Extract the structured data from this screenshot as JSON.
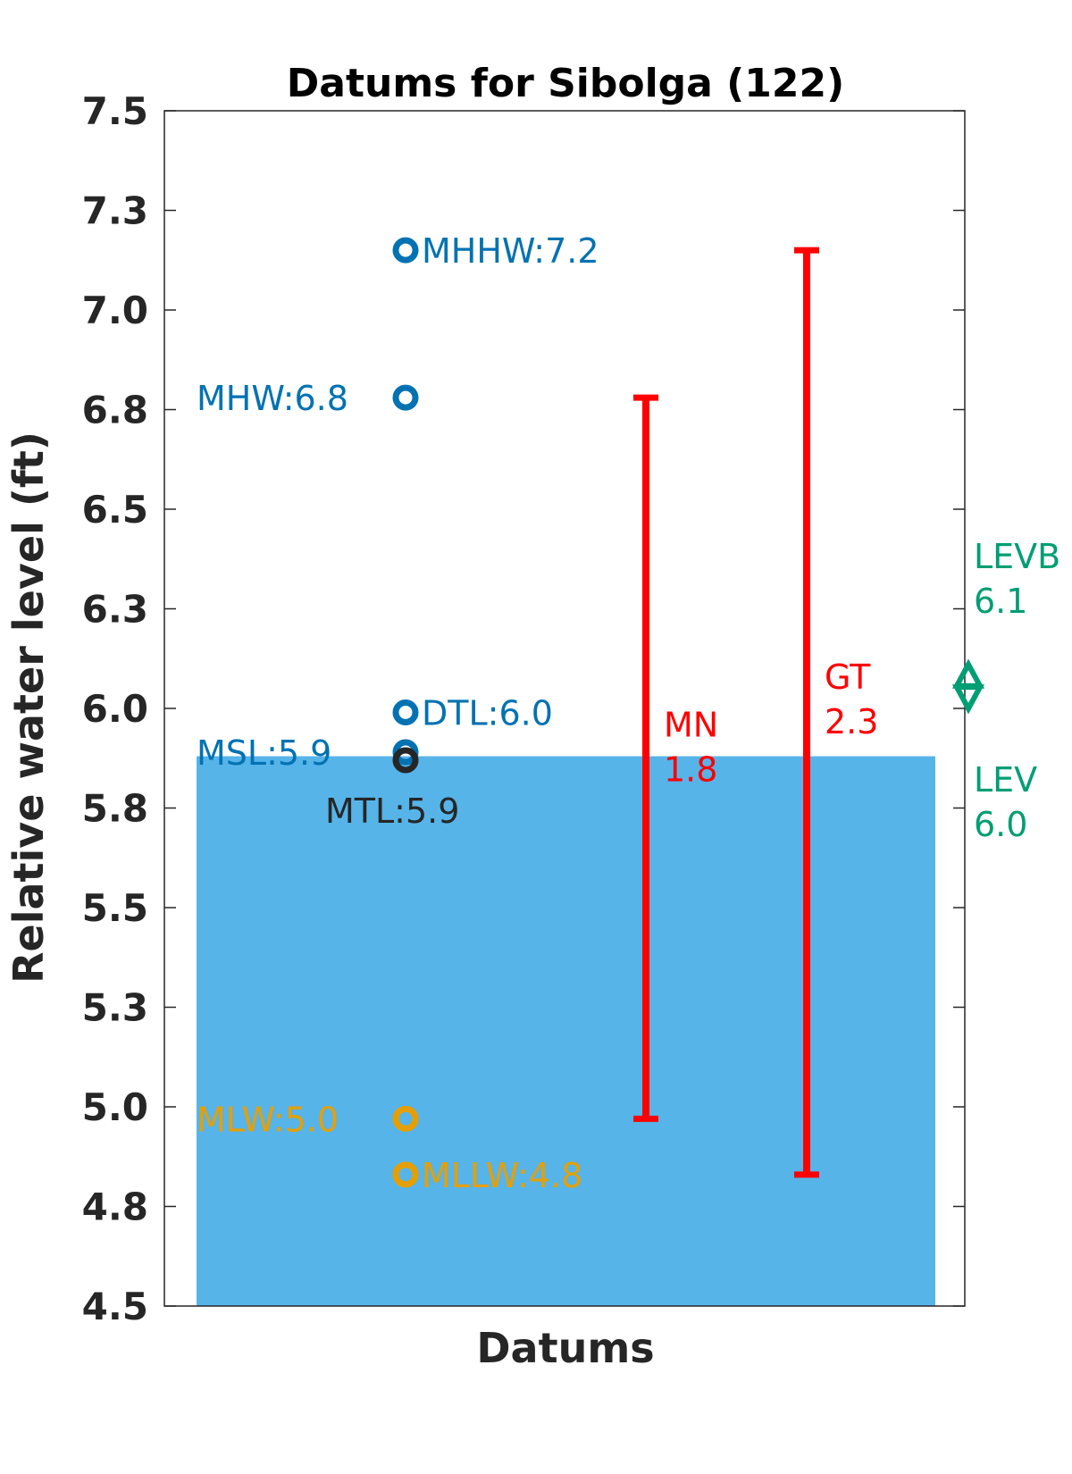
{
  "chart_data": {
    "type": "scatter",
    "title": "Datums for Sibolga (122)",
    "xlabel": "Datums",
    "ylabel": "Relative water level (ft)",
    "ylim": [
      4.5,
      7.5
    ],
    "yticks": [
      "4.5",
      "4.8",
      "5.0",
      "5.3",
      "5.5",
      "5.8",
      "6.0",
      "6.3",
      "6.5",
      "6.8",
      "7.0",
      "7.3",
      "7.5"
    ],
    "ytick_values": [
      4.5,
      4.75,
      5.0,
      5.25,
      5.5,
      5.75,
      6.0,
      6.25,
      6.5,
      6.75,
      7.0,
      7.25,
      7.5
    ],
    "grid": false,
    "water_fill": {
      "top": 5.88,
      "color": "#56B4E9"
    },
    "points": [
      {
        "label": "MHHW:7.2",
        "y": 7.15,
        "color": "#0072B2",
        "text_side": "right"
      },
      {
        "label": "MHW:6.8",
        "y": 6.78,
        "color": "#0072B2",
        "text_side": "left"
      },
      {
        "label": "DTL:6.0",
        "y": 5.99,
        "color": "#0072B2",
        "text_side": "right"
      },
      {
        "label": "MSL:5.9",
        "y": 5.89,
        "color": "#0072B2",
        "text_side": "left"
      },
      {
        "label": "MTL:5.9",
        "y": 5.87,
        "color": "#262626",
        "text_side": "below"
      },
      {
        "label": "MLW:5.0",
        "y": 4.97,
        "color": "#E69F00",
        "text_side": "left"
      },
      {
        "label": "MLLW:4.8",
        "y": 4.83,
        "color": "#E69F00",
        "text_side": "right"
      }
    ],
    "ranges": [
      {
        "name": "MN",
        "value": "1.8",
        "low": 4.97,
        "high": 6.78,
        "color": "#FF0000"
      },
      {
        "name": "GT",
        "value": "2.3",
        "low": 4.83,
        "high": 7.15,
        "color": "#FF0000"
      }
    ],
    "levels": [
      {
        "name": "LEVB",
        "value": "6.1",
        "y": 6.07,
        "color": "#009E73"
      },
      {
        "name": "LEV",
        "value": "6.0",
        "y": 6.04,
        "color": "#009E73"
      }
    ]
  }
}
